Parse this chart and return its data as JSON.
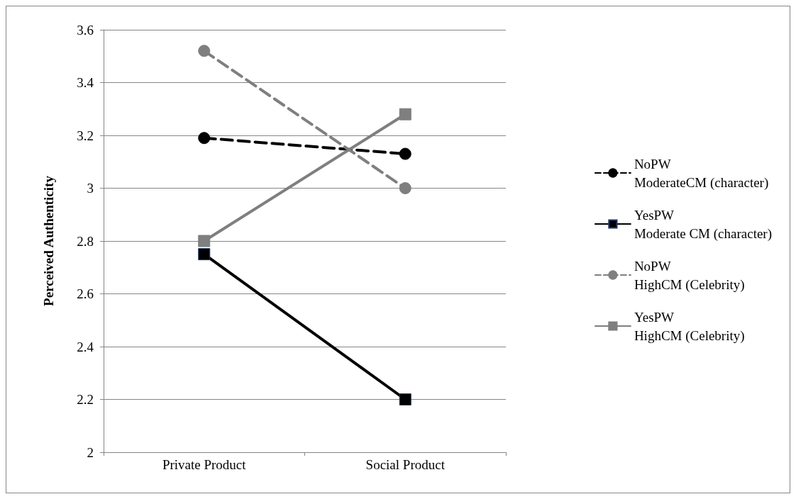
{
  "chart_data": {
    "type": "line",
    "ylabel": "Perceived Authenticity",
    "categories": [
      "Private Product",
      "Social Product"
    ],
    "ylim": [
      2,
      3.6
    ],
    "yticks": [
      2,
      2.2,
      2.4,
      2.6,
      2.8,
      3,
      3.2,
      3.4,
      3.6
    ],
    "grid": "y",
    "legend": "right",
    "series": [
      {
        "name": "NoPW\nModerateCM (character)",
        "color": "#000000",
        "values": [
          3.19,
          3.13
        ],
        "marker": "circle",
        "line_style": "dashed"
      },
      {
        "name": "YesPW\nModerate CM (character)",
        "color": "#000000",
        "values": [
          2.75,
          2.2
        ],
        "marker": "square",
        "line_style": "solid"
      },
      {
        "name": "NoPW\nHighCM (Celebrity)",
        "color": "#7f7f7f",
        "values": [
          3.52,
          3.0
        ],
        "marker": "circle",
        "line_style": "dashed"
      },
      {
        "name": "YesPW\nHighCM (Celebrity)",
        "color": "#7f7f7f",
        "values": [
          2.8,
          3.28
        ],
        "marker": "square",
        "line_style": "solid"
      }
    ]
  }
}
